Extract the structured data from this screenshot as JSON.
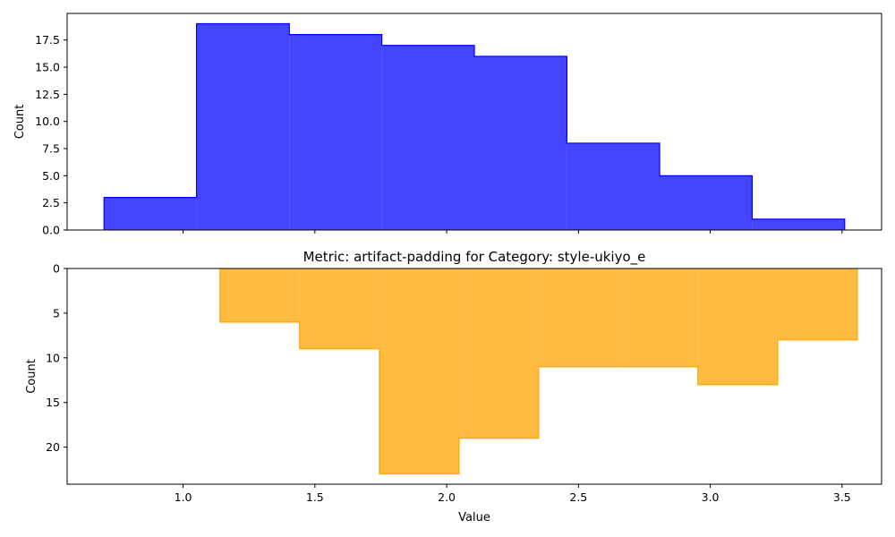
{
  "chart_data": [
    {
      "type": "histogram",
      "title": "",
      "xlabel": "",
      "ylabel": "Count",
      "color": "#0000ff",
      "fill_alpha": 0.73,
      "bin_edges": [
        0.7,
        1.051,
        1.403,
        1.754,
        2.105,
        2.456,
        2.808,
        3.159,
        3.51
      ],
      "counts": [
        3,
        19,
        18,
        17,
        16,
        8,
        5,
        1
      ],
      "xlim": [
        0.56,
        3.65
      ],
      "ylim": [
        0,
        19.95
      ],
      "yticks": [
        "0.0",
        "2.5",
        "5.0",
        "7.5",
        "10.0",
        "12.5",
        "15.0",
        "17.5"
      ],
      "xtick_values": [
        1.0,
        1.5,
        2.0,
        2.5,
        3.0,
        3.5
      ],
      "xtick_labels_visible": false,
      "y_inverted": false
    },
    {
      "type": "histogram",
      "title": "Metric: artifact-padding for Category: style-ukiyo_e",
      "xlabel": "Value",
      "ylabel": "Count",
      "color": "#ffa500",
      "fill_alpha": 0.75,
      "bin_edges": [
        1.14,
        1.442,
        1.745,
        2.047,
        2.349,
        2.651,
        2.953,
        3.256,
        3.558
      ],
      "counts": [
        6,
        9,
        23,
        19,
        11,
        11,
        13,
        8
      ],
      "xlim": [
        0.56,
        3.65
      ],
      "ylim": [
        0,
        24.15
      ],
      "yticks": [
        "0",
        "5",
        "10",
        "15",
        "20"
      ],
      "xtick_values": [
        1.0,
        1.5,
        2.0,
        2.5,
        3.0,
        3.5
      ],
      "xtick_labels": [
        "1.0",
        "1.5",
        "2.0",
        "2.5",
        "3.0",
        "3.5"
      ],
      "xtick_labels_visible": true,
      "y_inverted": true
    }
  ]
}
